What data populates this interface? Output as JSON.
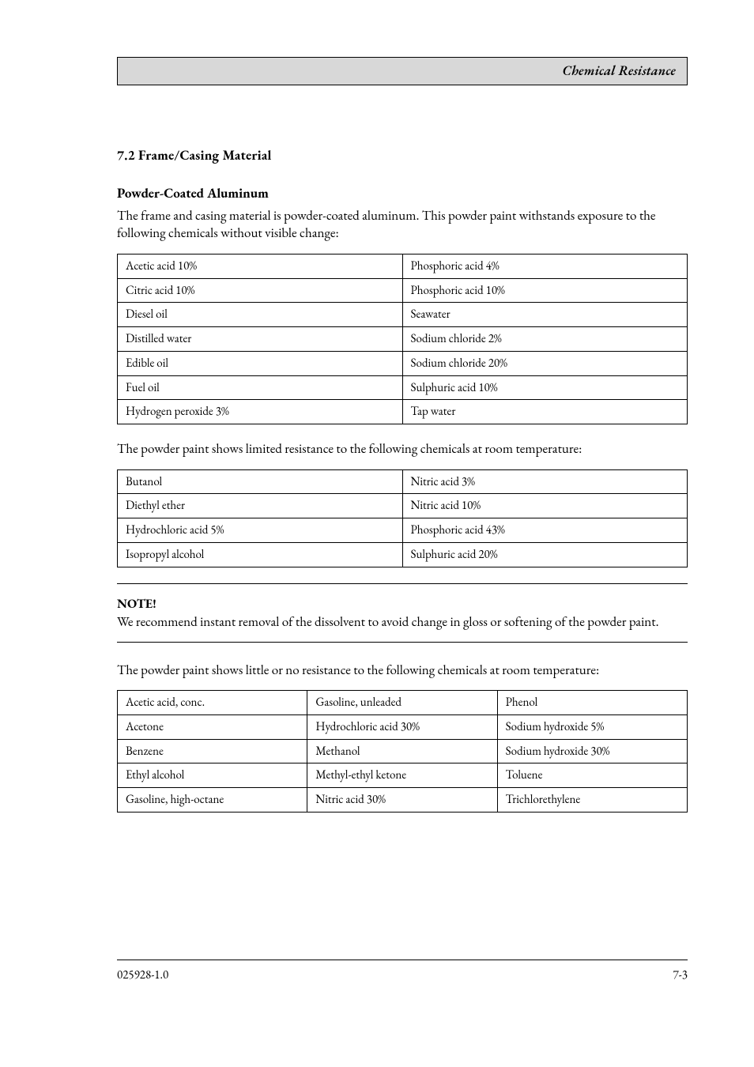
{
  "header": {
    "title": "Chemical Resistance"
  },
  "section_title": "7.2 Frame/Casing Material",
  "subheading": "Powder-Coated Aluminum",
  "intro_text": "The frame and casing material is powder-coated aluminum.  This powder paint withstands exposure to the following chemicals without visible change:",
  "table_resistant": {
    "rows": [
      [
        "Acetic acid 10%",
        "Phosphoric acid 4%"
      ],
      [
        "Citric acid 10%",
        "Phosphoric acid 10%"
      ],
      [
        "Diesel oil",
        "Seawater"
      ],
      [
        "Distilled water",
        "Sodium chloride 2%"
      ],
      [
        "Edible oil",
        "Sodium chloride 20%"
      ],
      [
        "Fuel oil",
        "Sulphuric acid 10%"
      ],
      [
        "Hydrogen peroxide 3%",
        "Tap water"
      ]
    ]
  },
  "limited_intro": "The powder paint shows limited resistance to the following chemicals at room temperature:",
  "table_limited": {
    "rows": [
      [
        "Butanol",
        "Nitric acid 3%"
      ],
      [
        "Diethyl ether",
        "Nitric acid 10%"
      ],
      [
        "Hydrochloric acid 5%",
        "Phosphoric acid 43%"
      ],
      [
        "Isopropyl alcohol",
        "Sulphuric acid 20%"
      ]
    ]
  },
  "note": {
    "label": "NOTE!",
    "text": "We recommend instant removal of the dissolvent to avoid change in gloss or softening of the powder paint."
  },
  "none_intro": "The powder paint shows little or no resistance to the following chemicals at room temperature:",
  "table_none": {
    "rows": [
      [
        "Acetic acid, conc.",
        "Gasoline, unleaded",
        "Phenol"
      ],
      [
        "Acetone",
        "Hydrochloric acid 30%",
        "Sodium hydroxide 5%"
      ],
      [
        "Benzene",
        "Methanol",
        "Sodium hydroxide 30%"
      ],
      [
        "Ethyl alcohol",
        "Methyl-ethyl ketone",
        "Toluene"
      ],
      [
        "Gasoline, high-octane",
        "Nitric acid 30%",
        "Trichlorethylene"
      ]
    ]
  },
  "footer": {
    "left": "025928-1.0",
    "right": "7-3"
  },
  "colors": {
    "header_bg": "#d8d8d8",
    "text": "#000000",
    "border": "#000000",
    "page_bg": "#ffffff"
  }
}
